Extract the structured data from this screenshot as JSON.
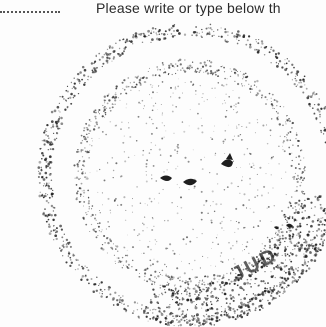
{
  "document": {
    "instruction_text": "Please write or type below th"
  },
  "stamp": {
    "visible_text": "JUD",
    "ink_color": "#1e1e1e"
  }
}
